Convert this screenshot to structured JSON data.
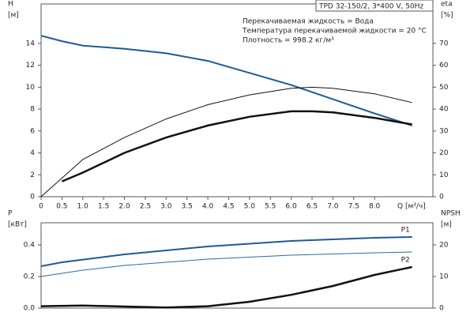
{
  "chart_data": [
    {
      "type": "line",
      "title": "TPD 32-150/2, 3*400 V, 50Hz",
      "notes": [
        "Перекачиваемая жидкость = Вода",
        "Температура перекачиваемой жидкости = 20 °C",
        "Плотность = 998.2 кг/м³"
      ],
      "ylabel": "H",
      "yunit": "[м]",
      "y2label": "eta",
      "y2unit": "[%]",
      "xlabel": "Q [м³/ч]",
      "xlim": [
        0,
        9.4
      ],
      "xticks": [
        0,
        0.5,
        {
          "value": 1,
          "label": "1.0"
        },
        1.5,
        {
          "value": 2,
          "label": "2.0"
        },
        2.5,
        {
          "value": 3,
          "label": "3.0"
        },
        3.5,
        {
          "value": 4,
          "label": "4.0"
        },
        4.5,
        {
          "value": 5,
          "label": "5.0"
        },
        5.5,
        {
          "value": 6,
          "label": "6.0"
        },
        6.5,
        {
          "value": 7,
          "label": "7.0"
        },
        7.5,
        {
          "value": 8,
          "label": "8.0"
        }
      ],
      "ylim": [
        0,
        17.6
      ],
      "yticks": [
        0,
        2,
        4,
        6,
        8,
        10,
        12,
        14
      ],
      "y2lim": [
        0,
        88
      ],
      "y2ticks": [
        0,
        10,
        20,
        30,
        40,
        50,
        60,
        70
      ],
      "series": [
        {
          "color": "#1f5a96",
          "width": 2,
          "x": [
            0,
            0.5,
            1,
            2,
            3,
            4,
            5,
            6,
            7,
            8,
            8.9
          ],
          "values": [
            14.7,
            14.2,
            13.8,
            13.5,
            13.1,
            12.4,
            11.3,
            10.2,
            8.9,
            7.6,
            6.5
          ]
        },
        {
          "color": "#111111",
          "width": 1,
          "axis": "y2",
          "x": [
            0,
            1,
            2,
            3,
            4,
            5,
            6,
            6.5,
            7,
            8,
            8.9
          ],
          "values": [
            0,
            17,
            27,
            35.5,
            42,
            46.5,
            49.5,
            50,
            49.5,
            47,
            43
          ]
        },
        {
          "color": "#111111",
          "width": 2.5,
          "axis": "y2",
          "x": [
            0.5,
            1,
            2,
            3,
            4,
            5,
            6,
            6.5,
            7,
            8,
            8.9
          ],
          "values": [
            7,
            11,
            20,
            27,
            32.5,
            36.5,
            39,
            39,
            38.5,
            36,
            33
          ]
        }
      ]
    },
    {
      "type": "line",
      "ylabel": "P",
      "yunit": "[кВт]",
      "y2label": "NPSH",
      "y2unit": "[м]",
      "xlim": [
        0,
        9.4
      ],
      "ylim": [
        0,
        0.54
      ],
      "yticks": [
        {
          "value": 0,
          "label": "0.0"
        },
        0.2,
        0.4
      ],
      "y2lim": [
        0,
        27
      ],
      "y2ticks": [
        0,
        10,
        20
      ],
      "series": [
        {
          "name": "P1",
          "color": "#1f5a96",
          "width": 2,
          "x": [
            0,
            0.5,
            2,
            4,
            6,
            8,
            8.9
          ],
          "values": [
            0.265,
            0.29,
            0.34,
            0.39,
            0.425,
            0.445,
            0.45
          ]
        },
        {
          "name": "P2",
          "color": "#2a6aa5",
          "width": 1,
          "x": [
            0,
            1,
            2,
            4,
            6,
            8,
            8.9
          ],
          "values": [
            0.2,
            0.24,
            0.27,
            0.31,
            0.335,
            0.35,
            0.355
          ]
        },
        {
          "color": "#111111",
          "width": 2.5,
          "axis": "y2",
          "x": [
            0,
            1,
            2,
            3,
            4,
            5,
            6,
            7,
            8,
            8.9
          ],
          "values": [
            0.6,
            0.8,
            0.5,
            0.2,
            0.6,
            2,
            4.2,
            7,
            10.5,
            13
          ]
        }
      ]
    }
  ]
}
